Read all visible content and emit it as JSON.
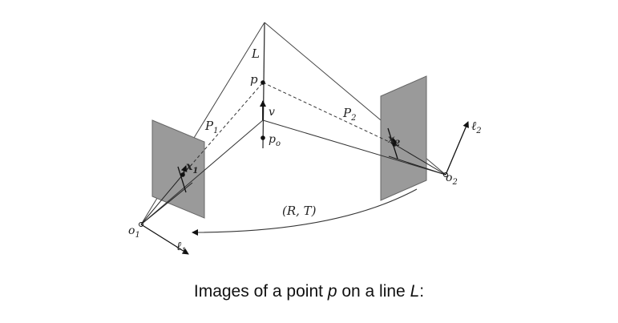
{
  "figure": {
    "labels": {
      "line": "L",
      "point": "p",
      "velocity": "v",
      "base_point": "p",
      "base_point_sub": "o",
      "proj_left": "P",
      "proj_left_sub": "1",
      "proj_right": "P",
      "proj_right_sub": "2",
      "image_left": "x",
      "image_left_sub": "1",
      "image_right": "x",
      "image_right_sub": "2",
      "center_left": "o",
      "center_left_sub": "1",
      "center_right": "o",
      "center_right_sub": "2",
      "line_img_left": "ℓ",
      "line_img_left_sub": "1",
      "line_img_right": "ℓ",
      "line_img_right_sub": "2",
      "motion": "(R, T)"
    }
  },
  "caption": {
    "prefix": "Images of a point ",
    "point": "p",
    "middle": " on a line ",
    "line": "L",
    "suffix": ":"
  }
}
